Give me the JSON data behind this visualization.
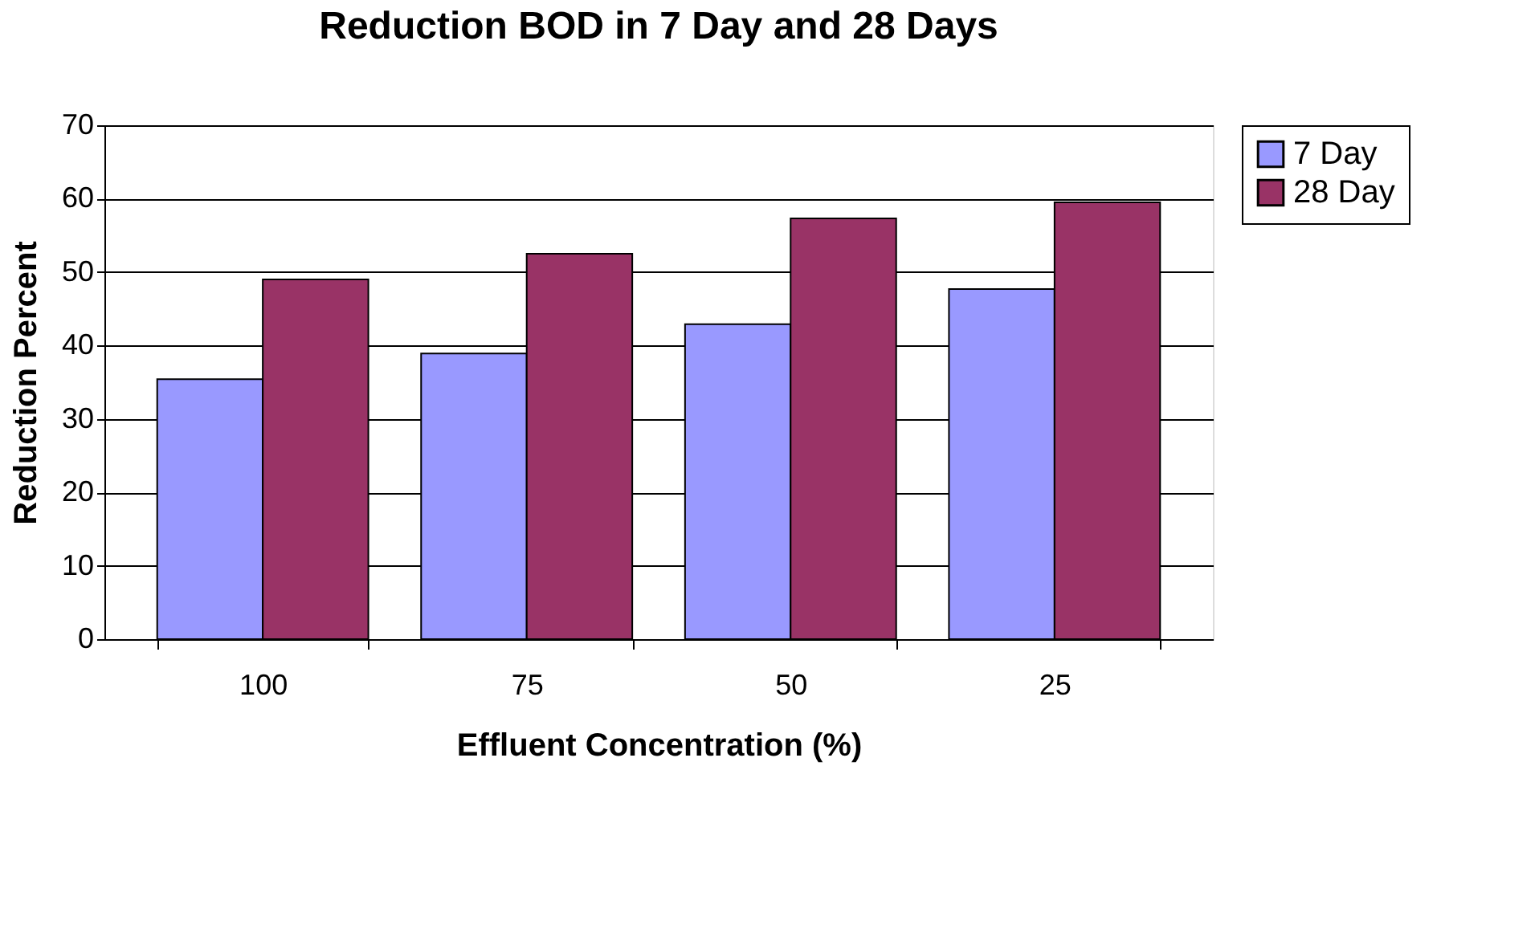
{
  "chart_data": {
    "type": "bar",
    "title": "Reduction BOD in 7 Day and 28 Days",
    "xlabel": "Effluent Concentration (%)",
    "ylabel": "Reduction Percent",
    "categories": [
      "100",
      "75",
      "50",
      "25"
    ],
    "series": [
      {
        "name": "7 Day",
        "color": "#9999ff",
        "values": [
          35.4,
          38.9,
          42.9,
          47.7
        ]
      },
      {
        "name": "28 Day",
        "color": "#993366",
        "values": [
          49.0,
          52.5,
          57.3,
          59.5
        ]
      }
    ],
    "ylim": [
      0,
      70
    ],
    "yticks": [
      0,
      10,
      20,
      30,
      40,
      50,
      60,
      70
    ],
    "grid": "y",
    "legend": "right"
  }
}
